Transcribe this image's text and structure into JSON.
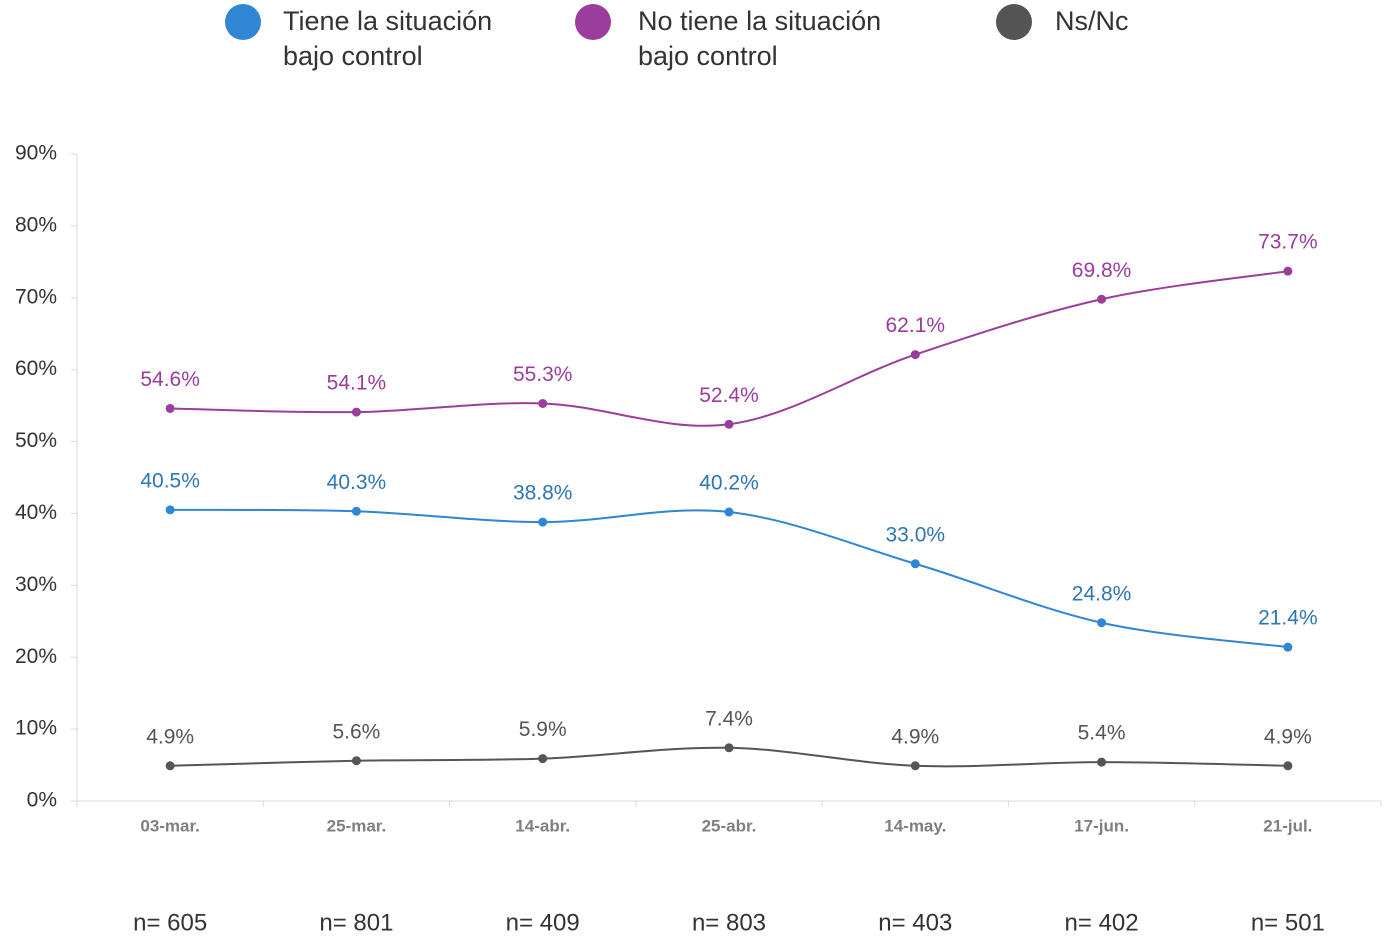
{
  "chart_data": {
    "type": "line",
    "categories": [
      "03-mar.",
      "25-mar.",
      "14-abr.",
      "25-abr.",
      "14-may.",
      "17-jun.",
      "21-jul."
    ],
    "sample_sizes": [
      "n= 605",
      "n= 801",
      "n= 409",
      "n= 803",
      "n= 403",
      "n= 402",
      "n= 501"
    ],
    "series": [
      {
        "name": "Tiene la situación bajo control",
        "color": "#2e86d4",
        "label_color": "#2e75b6",
        "values": [
          40.5,
          40.3,
          38.8,
          40.2,
          33.0,
          24.8,
          21.4
        ],
        "value_labels": [
          "40.5%",
          "40.3%",
          "38.8%",
          "40.2%",
          "33.0%",
          "24.8%",
          "21.4%"
        ]
      },
      {
        "name": "No tiene la situación bajo control",
        "color": "#9b3d9b",
        "label_color": "#9b3d9b",
        "values": [
          54.6,
          54.1,
          55.3,
          52.4,
          62.1,
          69.8,
          73.7
        ],
        "value_labels": [
          "54.6%",
          "54.1%",
          "55.3%",
          "52.4%",
          "62.1%",
          "69.8%",
          "73.7%"
        ]
      },
      {
        "name": "Ns/Nc",
        "color": "#555555",
        "label_color": "#555555",
        "values": [
          4.9,
          5.6,
          5.9,
          7.4,
          4.9,
          5.4,
          4.9
        ],
        "value_labels": [
          "4.9%",
          "5.6%",
          "5.9%",
          "7.4%",
          "4.9%",
          "5.4%",
          "4.9%"
        ]
      }
    ],
    "ylim": [
      0,
      90
    ],
    "yticks": [
      {
        "value": 0,
        "label": "0%"
      },
      {
        "value": 10,
        "label": "10%"
      },
      {
        "value": 20,
        "label": "20%"
      },
      {
        "value": 30,
        "label": "30%"
      },
      {
        "value": 40,
        "label": "40%"
      },
      {
        "value": 50,
        "label": "50%"
      },
      {
        "value": 60,
        "label": "60%"
      },
      {
        "value": 70,
        "label": "70%"
      },
      {
        "value": 80,
        "label": "80%"
      },
      {
        "value": 90,
        "label": "90%"
      }
    ],
    "legend": "top",
    "smooth": true
  }
}
